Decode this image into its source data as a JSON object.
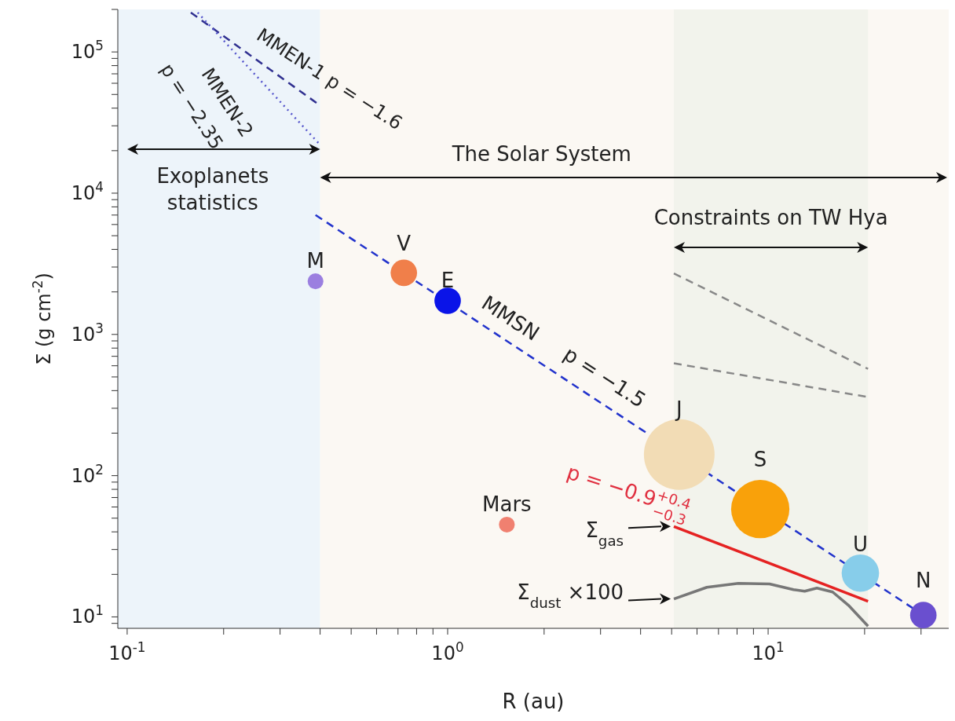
{
  "chart_data": {
    "type": "line",
    "xlabel": "R (au)",
    "ylabel": "Σ (g cm$^{-2}$)",
    "log": "xy",
    "xlim": [
      0.0935,
      36.6
    ],
    "ylim": [
      8.3,
      200000
    ],
    "xticks": [
      {
        "value": 0.1,
        "label": "10$^{-1}$"
      },
      {
        "value": 0.2,
        "label": null
      },
      {
        "value": 0.3,
        "label": null
      },
      {
        "value": 0.4,
        "label": null
      },
      {
        "value": 0.5,
        "label": null
      },
      {
        "value": 0.6,
        "label": null
      },
      {
        "value": 0.7,
        "label": null
      },
      {
        "value": 0.8,
        "label": null
      },
      {
        "value": 0.9,
        "label": null
      },
      {
        "value": 1,
        "label": "10$^{0}$"
      },
      {
        "value": 2,
        "label": null
      },
      {
        "value": 3,
        "label": null
      },
      {
        "value": 4,
        "label": null
      },
      {
        "value": 5,
        "label": null
      },
      {
        "value": 6,
        "label": null
      },
      {
        "value": 7,
        "label": null
      },
      {
        "value": 8,
        "label": null
      },
      {
        "value": 9,
        "label": null
      },
      {
        "value": 10,
        "label": "10$^{1}$"
      },
      {
        "value": 20,
        "label": null
      },
      {
        "value": 30,
        "label": null
      }
    ],
    "yticks": [
      {
        "value": 9,
        "label": null
      },
      {
        "value": 10,
        "label": "10$^{1}$"
      },
      {
        "value": 20,
        "label": null
      },
      {
        "value": 30,
        "label": null
      },
      {
        "value": 40,
        "label": null
      },
      {
        "value": 50,
        "label": null
      },
      {
        "value": 60,
        "label": null
      },
      {
        "value": 70,
        "label": null
      },
      {
        "value": 80,
        "label": null
      },
      {
        "value": 90,
        "label": null
      },
      {
        "value": 100,
        "label": "10$^{2}$"
      },
      {
        "value": 200,
        "label": null
      },
      {
        "value": 300,
        "label": null
      },
      {
        "value": 400,
        "label": null
      },
      {
        "value": 500,
        "label": null
      },
      {
        "value": 600,
        "label": null
      },
      {
        "value": 700,
        "label": null
      },
      {
        "value": 800,
        "label": null
      },
      {
        "value": 900,
        "label": null
      },
      {
        "value": 1000,
        "label": "10$^{3}$"
      },
      {
        "value": 2000,
        "label": null
      },
      {
        "value": 3000,
        "label": null
      },
      {
        "value": 4000,
        "label": null
      },
      {
        "value": 5000,
        "label": null
      },
      {
        "value": 6000,
        "label": null
      },
      {
        "value": 7000,
        "label": null
      },
      {
        "value": 8000,
        "label": null
      },
      {
        "value": 9000,
        "label": null
      },
      {
        "value": 10000,
        "label": "10$^{4}$"
      },
      {
        "value": 20000,
        "label": null
      },
      {
        "value": 30000,
        "label": null
      },
      {
        "value": 40000,
        "label": null
      },
      {
        "value": 50000,
        "label": null
      },
      {
        "value": 60000,
        "label": null
      },
      {
        "value": 70000,
        "label": null
      },
      {
        "value": 80000,
        "label": null
      },
      {
        "value": 90000,
        "label": null
      },
      {
        "value": 100000,
        "label": "10$^{5}$"
      },
      {
        "value": 200000,
        "label": null
      }
    ],
    "bands": [
      {
        "axis": "x",
        "from": 0.0935,
        "to": 0.4,
        "label": "Exoplanets statistics",
        "color": "#edf4fa"
      },
      {
        "axis": "x",
        "from": 0.4,
        "to": 36.6,
        "label": "The Solar System",
        "color": "#fbf8f3"
      },
      {
        "axis": "x",
        "from": 5.08,
        "to": 20.5,
        "label": "Constraints on TW Hya",
        "color": "#f2f3ec"
      }
    ],
    "series": [
      {
        "type": "bubble",
        "x": [
          0.387,
          0.73,
          1.0,
          1.53,
          5.28,
          9.45,
          19.4,
          30.5
        ],
        "values": [
          2380,
          2730,
          1730,
          45,
          141,
          58,
          20.4,
          10.3
        ],
        "sizes": [
          0.05,
          0.14,
          0.14,
          0.05,
          1,
          0.68,
          0.28,
          0.14
        ],
        "colors": [
          "#9b7fe0",
          "#f07f4a",
          "#0a14e8",
          "#f08070",
          "#f2dcb5",
          "#f9a10a",
          "#87cdea",
          "#6a4fcf"
        ]
      },
      {
        "x": [
          0.387,
          30.5
        ],
        "values": [
          7000,
          10.3
        ],
        "color": "#2233cc",
        "line_style": "dashed"
      },
      {
        "x": [
          0.158,
          0.393
        ],
        "values": [
          190000,
          43000
        ],
        "color": "#303090",
        "line_style": "dashed"
      },
      {
        "x": [
          0.166,
          0.4
        ],
        "values": [
          190000,
          22000
        ],
        "color": "#5555cc",
        "line_style": "dotted"
      },
      {
        "x": [
          5.08,
          20.5
        ],
        "values": [
          2700,
          570
        ],
        "color": "#888888",
        "line_style": "dashed"
      },
      {
        "x": [
          5.08,
          20.5
        ],
        "values": [
          625,
          360
        ],
        "color": "#888888",
        "line_style": "dashed"
      },
      {
        "x": [
          5.08,
          20.5
        ],
        "values": [
          43.7,
          12.9
        ],
        "color": "#e52222",
        "line_style": "solid"
      },
      {
        "x": [
          5.08,
          6.44,
          8.07,
          10.1,
          12.0,
          13.0,
          14.2,
          15.9,
          17.8,
          20.5
        ],
        "values": [
          13.4,
          16.2,
          17.3,
          17.1,
          15.6,
          15.2,
          16.0,
          15.0,
          12.1,
          8.6
        ],
        "color": "#777777",
        "line_style": "solid"
      }
    ],
    "annotations": [
      "MMEN-1 p = −1.6",
      "MMEN-2",
      "p = −2.35",
      "MMSN",
      "p = −1.5",
      "p = −0.9$^{+0.4}$$_{−0.3}$",
      {
        "text": "Σ$_{gas}$",
        "x": 5.08,
        "y": 43.7
      },
      {
        "text": "Σ$_{dust}$ ×100",
        "x": 5.08,
        "y": 13.4
      },
      {
        "text": "M",
        "x": 0.387,
        "y": 2380
      },
      {
        "text": "V",
        "x": 0.73,
        "y": 2730
      },
      {
        "text": "E",
        "x": 1.0,
        "y": 1730
      },
      {
        "text": "Mars",
        "x": 1.53,
        "y": 45
      },
      {
        "text": "J",
        "x": 5.28,
        "y": 141
      },
      {
        "text": "S",
        "x": 9.45,
        "y": 58
      },
      {
        "text": "U",
        "x": 19.4,
        "y": 20.4
      },
      {
        "text": "N",
        "x": 30.5,
        "y": 10.3
      }
    ]
  }
}
